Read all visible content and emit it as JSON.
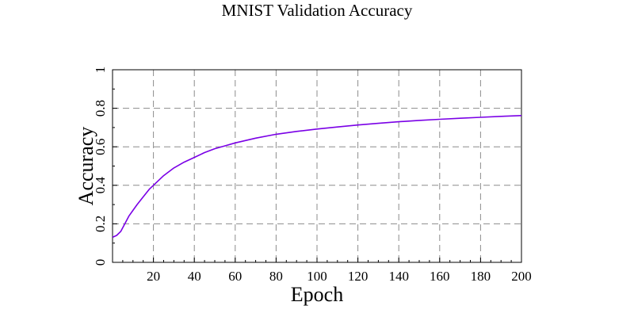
{
  "chart_data": {
    "type": "line",
    "title": "MNIST Validation Accuracy",
    "xlabel": "Epoch",
    "ylabel": "Accuracy",
    "xlim": [
      0,
      200
    ],
    "ylim": [
      0,
      1
    ],
    "xticks": [
      20,
      40,
      60,
      80,
      100,
      120,
      140,
      160,
      180,
      200
    ],
    "yticks": [
      0,
      0.2,
      0.4,
      0.6,
      0.8,
      1
    ],
    "xtick_labels": [
      "20",
      "40",
      "60",
      "80",
      "100",
      "120",
      "140",
      "160",
      "180",
      "200"
    ],
    "ytick_labels": [
      "0",
      "0.2",
      "0.4",
      "0.6",
      "0.8",
      "1"
    ],
    "grid": true,
    "legend": "none",
    "series": [
      {
        "color": "#7a00e6",
        "x": [
          0,
          2,
          4,
          6,
          8,
          10,
          12,
          15,
          18,
          20,
          25,
          30,
          35,
          40,
          45,
          50,
          55,
          60,
          70,
          80,
          90,
          100,
          110,
          120,
          130,
          140,
          150,
          160,
          170,
          180,
          190,
          200
        ],
        "y": [
          0.13,
          0.14,
          0.16,
          0.2,
          0.24,
          0.27,
          0.3,
          0.34,
          0.38,
          0.4,
          0.45,
          0.49,
          0.52,
          0.545,
          0.57,
          0.59,
          0.605,
          0.62,
          0.645,
          0.665,
          0.68,
          0.692,
          0.703,
          0.713,
          0.722,
          0.73,
          0.737,
          0.743,
          0.748,
          0.753,
          0.758,
          0.762
        ]
      }
    ]
  }
}
